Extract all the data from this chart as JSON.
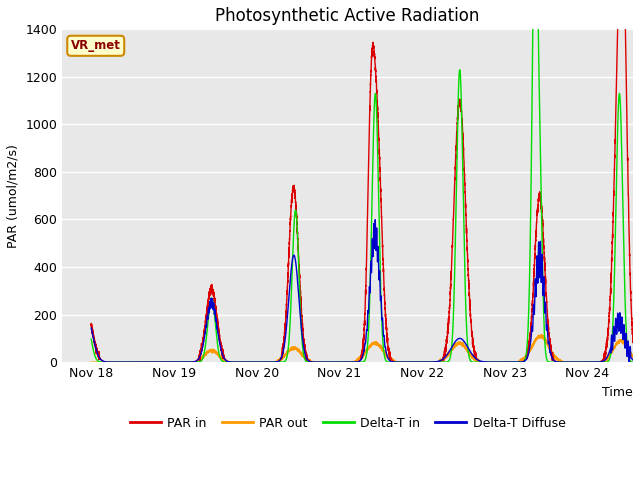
{
  "title": "Photosynthetic Active Radiation",
  "ylabel": "PAR (umol/m2/s)",
  "xlabel": "Time",
  "ylim": [
    0,
    1400
  ],
  "series_colors": {
    "PAR_in": "#dd0000",
    "PAR_out": "#ff9900",
    "Delta_T_in": "#00dd00",
    "Delta_T_Diffuse": "#0000cc"
  },
  "legend_labels": [
    "PAR in",
    "PAR out",
    "Delta-T in",
    "Delta-T Diffuse"
  ],
  "watermark": "VR_met",
  "plot_bg_color": "#e8e8e8",
  "title_fontsize": 12,
  "label_fontsize": 9,
  "tick_fontsize": 9,
  "x_ticks": [
    18,
    19,
    20,
    21,
    22,
    23,
    24
  ],
  "x_tick_labels": [
    "Nov 18",
    "Nov 19",
    "Nov 20",
    "Nov 21",
    "Nov 22",
    "Nov 23",
    "Nov 24"
  ],
  "yticks": [
    0,
    200,
    400,
    600,
    800,
    1000,
    1200,
    1400
  ],
  "xlim": [
    17.65,
    24.55
  ]
}
